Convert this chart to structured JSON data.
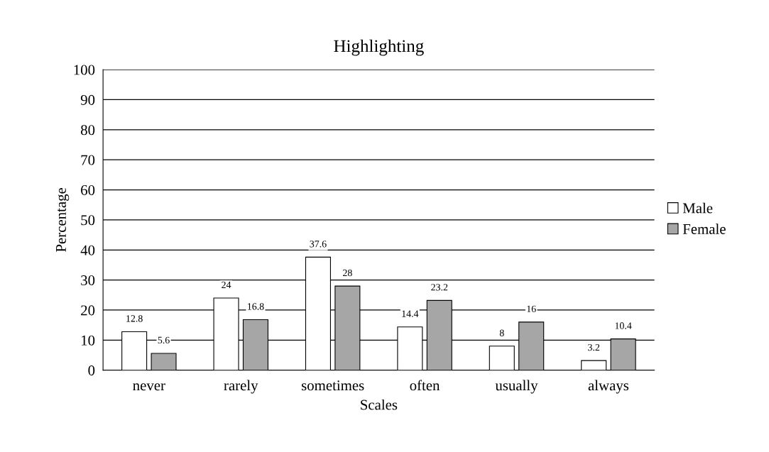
{
  "chart_data": {
    "type": "bar",
    "title": "Highlighting",
    "xlabel": "Scales",
    "ylabel": "Percentage",
    "categories": [
      "never",
      "rarely",
      "sometimes",
      "often",
      "usually",
      "always"
    ],
    "series": [
      {
        "name": "Male",
        "color": "#ffffff",
        "values": [
          12.8,
          24,
          37.6,
          14.4,
          8,
          3.2
        ]
      },
      {
        "name": "Female",
        "color": "#a6a6a6",
        "values": [
          5.6,
          16.8,
          28,
          23.2,
          16,
          10.4
        ]
      }
    ],
    "ylim": [
      0,
      100
    ],
    "yticks": [
      0,
      10,
      20,
      30,
      40,
      50,
      60,
      70,
      80,
      90,
      100
    ],
    "grid": "y",
    "legend": "right",
    "data_labels": true
  }
}
